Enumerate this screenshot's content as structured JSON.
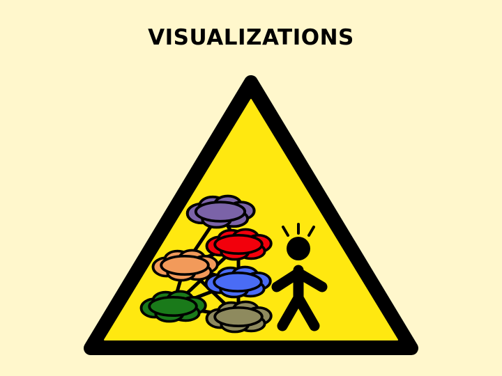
{
  "slide": {
    "title": "VISUALIZATIONS",
    "background_color": "#fff7cc"
  },
  "sign": {
    "icon": "warning-triangle-icon",
    "fill_color": "#ffe810",
    "border_color": "#000000"
  },
  "network": {
    "icon": "cloud-network-icon",
    "node_colors": {
      "purple": "#7b63a8",
      "red": "#f2000c",
      "orange": "#f29a5a",
      "blue": "#4a6cf5",
      "green": "#1a7a1a",
      "olive": "#8e8a5e"
    }
  },
  "figure": {
    "icon": "alert-person-icon"
  }
}
